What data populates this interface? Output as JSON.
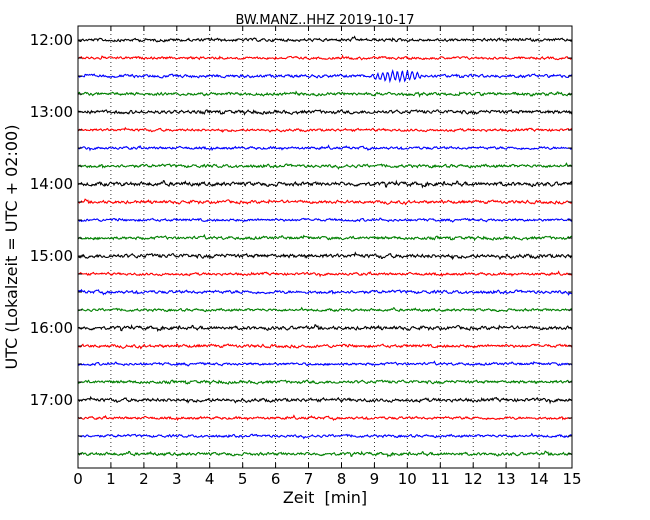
{
  "chart_data": {
    "type": "line",
    "title": "BW.MANZ..HHZ 2019-10-17",
    "xlabel": "Zeit  [min]",
    "ylabel": "UTC (Lokalzeit = UTC + 02:00)",
    "xlim": [
      0,
      15
    ],
    "x_ticks": [
      0,
      1,
      2,
      3,
      4,
      5,
      6,
      7,
      8,
      9,
      10,
      11,
      12,
      13,
      14,
      15
    ],
    "x_tick_labels": [
      "0",
      "1",
      "2",
      "3",
      "4",
      "5",
      "6",
      "7",
      "8",
      "9",
      "10",
      "11",
      "12",
      "13",
      "14",
      "15"
    ],
    "y_tick_labels": [
      "12:00",
      "13:00",
      "14:00",
      "15:00",
      "16:00",
      "17:00"
    ],
    "grid": "vertical dotted",
    "trace_colors": [
      "#000000",
      "#ff0000",
      "#0000ff",
      "#008000"
    ],
    "traces": [
      {
        "start": "12:00",
        "amplitude": 0.35
      },
      {
        "start": "12:15",
        "amplitude": 0.3
      },
      {
        "start": "12:30",
        "amplitude": 0.35,
        "event": {
          "from_min": 8.8,
          "to_min": 10.6,
          "amplitude": 1.2
        }
      },
      {
        "start": "12:45",
        "amplitude": 0.35
      },
      {
        "start": "13:00",
        "amplitude": 0.4
      },
      {
        "start": "13:15",
        "amplitude": 0.3
      },
      {
        "start": "13:30",
        "amplitude": 0.3
      },
      {
        "start": "13:45",
        "amplitude": 0.35
      },
      {
        "start": "14:00",
        "amplitude": 0.45
      },
      {
        "start": "14:15",
        "amplitude": 0.35
      },
      {
        "start": "14:30",
        "amplitude": 0.3
      },
      {
        "start": "14:45",
        "amplitude": 0.35
      },
      {
        "start": "15:00",
        "amplitude": 0.45
      },
      {
        "start": "15:15",
        "amplitude": 0.3
      },
      {
        "start": "15:30",
        "amplitude": 0.35
      },
      {
        "start": "15:45",
        "amplitude": 0.3
      },
      {
        "start": "16:00",
        "amplitude": 0.4
      },
      {
        "start": "16:15",
        "amplitude": 0.35
      },
      {
        "start": "16:30",
        "amplitude": 0.3
      },
      {
        "start": "16:45",
        "amplitude": 0.35
      },
      {
        "start": "17:00",
        "amplitude": 0.4
      },
      {
        "start": "17:15",
        "amplitude": 0.3
      },
      {
        "start": "17:30",
        "amplitude": 0.3
      },
      {
        "start": "17:45",
        "amplitude": 0.35
      }
    ]
  }
}
